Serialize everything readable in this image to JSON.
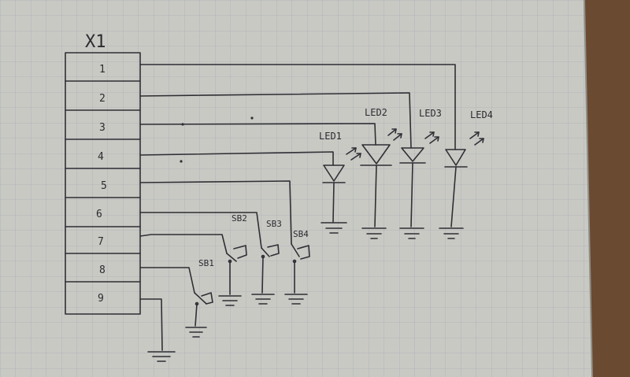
{
  "diagram": {
    "connector": {
      "title": "X1",
      "pins": [
        "1",
        "2",
        "3",
        "4",
        "5",
        "6",
        "7",
        "8",
        "9"
      ]
    },
    "leds": [
      {
        "label": "LED1"
      },
      {
        "label": "LED2"
      },
      {
        "label": "LED3"
      },
      {
        "label": "LED4"
      }
    ],
    "switches": [
      {
        "label": "SB1"
      },
      {
        "label": "SB2"
      },
      {
        "label": "SB3"
      },
      {
        "label": "SB4"
      }
    ]
  },
  "colors": {
    "paper": "#c9c9c4",
    "grid": "#a9b0b8",
    "ink": "#2f2f35",
    "desk": "#6b4a32"
  }
}
